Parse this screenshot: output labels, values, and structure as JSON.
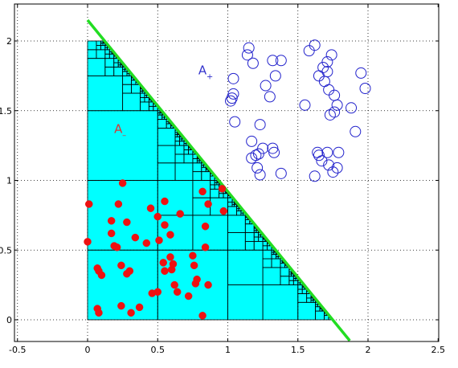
{
  "chart_data": {
    "type": "scatter",
    "title": "",
    "xlabel": "",
    "ylabel": "",
    "xlim": [
      -0.5,
      2.5
    ],
    "ylim": [
      -0.1,
      2.15
    ],
    "grid": true,
    "x_ticks": [
      "-0.5",
      "0",
      "0.5",
      "1",
      "1.5",
      "2",
      "2.5"
    ],
    "y_ticks": [
      "0",
      "0.5",
      "1",
      "1.5",
      "2"
    ],
    "x_tick_values": [
      -0.5,
      0,
      0.5,
      1,
      1.5,
      2,
      2.5
    ],
    "y_tick_values": [
      0,
      0.5,
      1,
      1.5,
      2
    ],
    "boundary_line": {
      "x": [
        0,
        1.87
      ],
      "y": [
        2.15,
        -0.15
      ],
      "color": "#22dd22"
    },
    "region_fill_color": "#00ffff",
    "annotations": [
      {
        "label": "A",
        "sub": "+",
        "x": 0.79,
        "y": 1.76,
        "color": "#3333cc"
      },
      {
        "label": "A",
        "sub": "–",
        "x": 0.19,
        "y": 1.34,
        "color": "#dd3333"
      }
    ],
    "series": [
      {
        "marker": "filled-circle",
        "color": "#ee1111",
        "points": [
          [
            0.01,
            0.83
          ],
          [
            0.0,
            0.56
          ],
          [
            0.07,
            0.37
          ],
          [
            0.08,
            0.35
          ],
          [
            0.1,
            0.32
          ],
          [
            0.07,
            0.08
          ],
          [
            0.08,
            0.05
          ],
          [
            0.17,
            0.71
          ],
          [
            0.17,
            0.62
          ],
          [
            0.19,
            0.53
          ],
          [
            0.21,
            0.52
          ],
          [
            0.22,
            0.83
          ],
          [
            0.25,
            0.98
          ],
          [
            0.24,
            0.39
          ],
          [
            0.24,
            0.1
          ],
          [
            0.28,
            0.7
          ],
          [
            0.28,
            0.33
          ],
          [
            0.3,
            0.35
          ],
          [
            0.31,
            0.05
          ],
          [
            0.34,
            0.59
          ],
          [
            0.37,
            0.09
          ],
          [
            0.42,
            0.55
          ],
          [
            0.45,
            0.8
          ],
          [
            0.46,
            0.19
          ],
          [
            0.5,
            0.74
          ],
          [
            0.5,
            0.2
          ],
          [
            0.51,
            0.57
          ],
          [
            0.55,
            0.68
          ],
          [
            0.55,
            0.85
          ],
          [
            0.54,
            0.41
          ],
          [
            0.55,
            0.35
          ],
          [
            0.59,
            0.61
          ],
          [
            0.59,
            0.45
          ],
          [
            0.6,
            0.36
          ],
          [
            0.61,
            0.4
          ],
          [
            0.62,
            0.25
          ],
          [
            0.64,
            0.2
          ],
          [
            0.66,
            0.76
          ],
          [
            0.72,
            0.17
          ],
          [
            0.75,
            0.46
          ],
          [
            0.76,
            0.39
          ],
          [
            0.77,
            0.26
          ],
          [
            0.78,
            0.29
          ],
          [
            0.82,
            0.92
          ],
          [
            0.82,
            0.03
          ],
          [
            0.84,
            0.67
          ],
          [
            0.84,
            0.52
          ],
          [
            0.86,
            0.83
          ],
          [
            0.86,
            0.25
          ],
          [
            0.96,
            0.94
          ],
          [
            0.97,
            0.78
          ]
        ]
      },
      {
        "marker": "open-circle",
        "color": "#2222cc",
        "points": [
          [
            1.04,
            1.73
          ],
          [
            1.04,
            1.62
          ],
          [
            1.02,
            1.57
          ],
          [
            1.03,
            1.59
          ],
          [
            1.05,
            1.42
          ],
          [
            1.14,
            1.9
          ],
          [
            1.15,
            1.95
          ],
          [
            1.18,
            1.84
          ],
          [
            1.27,
            1.68
          ],
          [
            1.3,
            1.6
          ],
          [
            1.32,
            1.86
          ],
          [
            1.34,
            1.75
          ],
          [
            1.38,
            1.86
          ],
          [
            1.23,
            1.4
          ],
          [
            1.17,
            1.28
          ],
          [
            1.17,
            1.16
          ],
          [
            1.2,
            1.18
          ],
          [
            1.22,
            1.19
          ],
          [
            1.23,
            1.04
          ],
          [
            1.21,
            1.09
          ],
          [
            1.25,
            1.23
          ],
          [
            1.32,
            1.23
          ],
          [
            1.33,
            1.2
          ],
          [
            1.38,
            1.05
          ],
          [
            1.55,
            1.54
          ],
          [
            1.58,
            1.93
          ],
          [
            1.62,
            1.97
          ],
          [
            1.65,
            1.75
          ],
          [
            1.68,
            1.81
          ],
          [
            1.69,
            1.71
          ],
          [
            1.71,
            1.85
          ],
          [
            1.74,
            1.9
          ],
          [
            1.76,
            1.61
          ],
          [
            1.73,
            1.47
          ],
          [
            1.76,
            1.49
          ],
          [
            1.78,
            1.54
          ],
          [
            1.71,
            1.78
          ],
          [
            1.72,
            1.65
          ],
          [
            1.62,
            1.03
          ],
          [
            1.64,
            1.2
          ],
          [
            1.67,
            1.14
          ],
          [
            1.71,
            1.2
          ],
          [
            1.72,
            1.11
          ],
          [
            1.75,
            1.06
          ],
          [
            1.79,
            1.2
          ],
          [
            1.78,
            1.09
          ],
          [
            1.88,
            1.52
          ],
          [
            1.91,
            1.35
          ],
          [
            1.95,
            1.77
          ],
          [
            1.98,
            1.66
          ],
          [
            1.65,
            1.18
          ]
        ]
      }
    ]
  }
}
